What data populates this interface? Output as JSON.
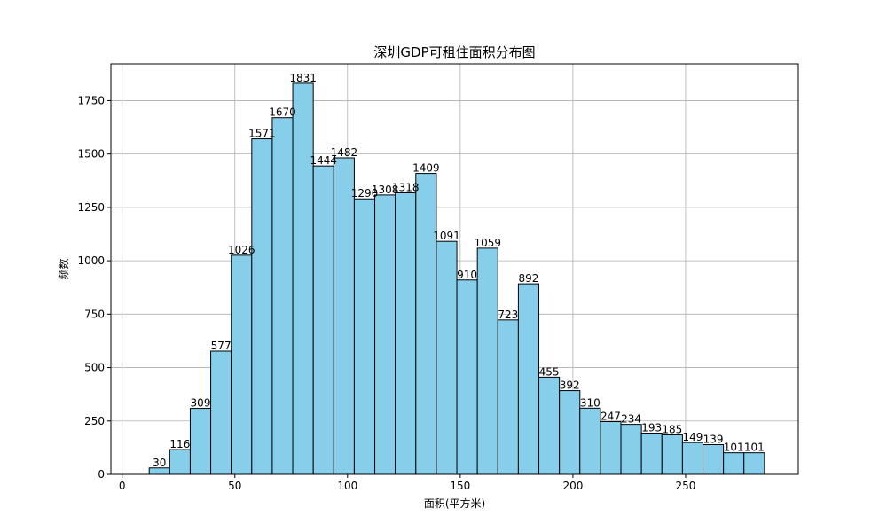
{
  "chart_data": {
    "type": "bar",
    "title": "深圳GDP可租住面积分布图",
    "xlabel": "面积(平方米)",
    "ylabel": "频数",
    "xlim": [
      -5,
      300
    ],
    "ylim": [
      0,
      1922
    ],
    "x_ticks": [
      0,
      50,
      100,
      150,
      200,
      250
    ],
    "y_ticks": [
      0,
      250,
      500,
      750,
      1000,
      1250,
      1500,
      1750
    ],
    "grid": true,
    "bar_color": "#87ceeb",
    "edge_color": "#000000",
    "bin_edges": [
      12,
      21.1,
      30.2,
      39.3,
      48.4,
      57.5,
      66.6,
      75.7,
      84.8,
      93.9,
      103,
      112.1,
      121.2,
      130.3,
      139.4,
      148.5,
      157.6,
      166.7,
      175.8,
      184.9,
      194,
      203.1,
      212.2,
      221.3,
      230.4,
      239.5,
      248.6,
      257.7,
      266.8,
      275.9,
      285
    ],
    "values": [
      30,
      116,
      309,
      577,
      1026,
      1571,
      1670,
      1831,
      1444,
      1482,
      1290,
      1308,
      1318,
      1409,
      1091,
      910,
      1059,
      723,
      892,
      455,
      392,
      310,
      247,
      234,
      193,
      185,
      149,
      139,
      101,
      101
    ]
  }
}
